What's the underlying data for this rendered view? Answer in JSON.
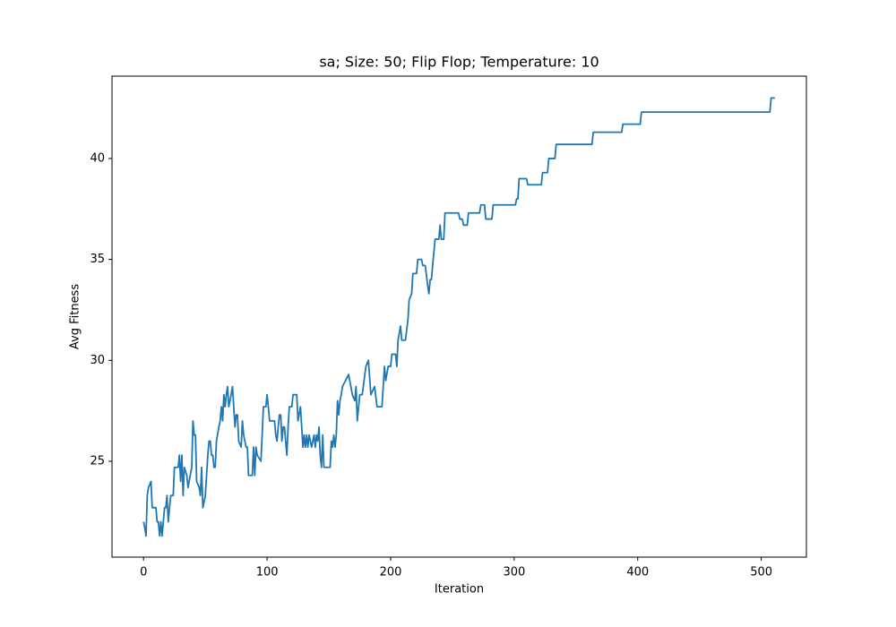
{
  "chart_data": {
    "type": "line",
    "title": "sa; Size: 50; Flip Flop; Temperature: 10",
    "x_label": "Iteration",
    "y_label": "Avg Fitness",
    "color": "#1f77b4",
    "grid": false,
    "xlim": [
      -25.55,
      536.55
    ],
    "ylim": [
      20.25,
      44.08
    ],
    "xticks": [
      0,
      100,
      200,
      300,
      400,
      500
    ],
    "yticks": [
      25,
      30,
      35,
      40
    ],
    "x": [
      0,
      1,
      2,
      3,
      4,
      6,
      7,
      10,
      11,
      12,
      13,
      14,
      15,
      17,
      18,
      19,
      20,
      21,
      22,
      24,
      25,
      28,
      29,
      30,
      31,
      32,
      33,
      35,
      36,
      39,
      40,
      41,
      42,
      43,
      45,
      46,
      47,
      48,
      50,
      52,
      53,
      54,
      55,
      56,
      57,
      58,
      59,
      61,
      62,
      63,
      64,
      65,
      66,
      67,
      68,
      69,
      70,
      72,
      73,
      74,
      75,
      76,
      77,
      79,
      80,
      81,
      83,
      84,
      85,
      88,
      89,
      90,
      91,
      92,
      95,
      96,
      97,
      99,
      100,
      101,
      102,
      106,
      107,
      108,
      109,
      110,
      111,
      112,
      113,
      114,
      116,
      117,
      118,
      120,
      121,
      124,
      125,
      127,
      128,
      129,
      130,
      131,
      132,
      133,
      134,
      136,
      138,
      139,
      140,
      141,
      142,
      143,
      144,
      145,
      146,
      151,
      152,
      153,
      154,
      155,
      156,
      157,
      158,
      159,
      160,
      161,
      166,
      169,
      171,
      172,
      173,
      175,
      177,
      180,
      182,
      184,
      187,
      189,
      193,
      195,
      196,
      198,
      200,
      201,
      204,
      205,
      206,
      208,
      209,
      212,
      214,
      215,
      217,
      218,
      221,
      222,
      225,
      226,
      228,
      230,
      231,
      232,
      233,
      234,
      236,
      239,
      240,
      241,
      243,
      244,
      255,
      256,
      258,
      259,
      262,
      263,
      272,
      273,
      276,
      277,
      282,
      283,
      301,
      302,
      303,
      304,
      310,
      311,
      322,
      323,
      327,
      328,
      333,
      334,
      363,
      364,
      387,
      388,
      402,
      403,
      507,
      508,
      511
    ],
    "values": [
      22,
      21.7,
      21.3,
      23.3,
      23.7,
      24,
      22.7,
      22.7,
      22,
      22,
      21.3,
      22,
      21.3,
      22.7,
      22.7,
      23.3,
      22,
      22.7,
      23.3,
      23.3,
      24.7,
      24.7,
      25.3,
      24,
      25.3,
      23.3,
      24.7,
      24.3,
      23.7,
      24.7,
      27,
      26.3,
      26.3,
      24,
      23.7,
      23.3,
      24.7,
      22.7,
      23.3,
      25.3,
      26,
      26,
      25.3,
      25.3,
      24.7,
      24.7,
      26,
      26.7,
      27,
      27.7,
      27,
      28.3,
      27.7,
      28.3,
      28.7,
      27.7,
      28,
      28.7,
      27.7,
      26.7,
      27.3,
      27.3,
      26,
      25.7,
      27,
      26.3,
      25.7,
      25.7,
      24.3,
      24.3,
      25.7,
      24.3,
      25.7,
      25.3,
      25,
      26.3,
      27.7,
      27.7,
      28.3,
      27.7,
      27,
      27,
      26.3,
      26,
      26.7,
      27.3,
      27.3,
      26,
      26.7,
      26.7,
      25.3,
      26.7,
      27.7,
      27.7,
      28.3,
      28.3,
      27,
      27.7,
      26.7,
      25.7,
      26.3,
      25.7,
      26.3,
      25.7,
      26.3,
      25.7,
      26.3,
      25.7,
      26.3,
      26,
      26.7,
      25.3,
      24.7,
      26.3,
      24.7,
      24.7,
      26,
      25.7,
      26.3,
      25.7,
      26.3,
      28,
      27.3,
      28,
      28.3,
      28.7,
      29.3,
      28.3,
      28,
      28.7,
      27,
      28.3,
      28.3,
      29.7,
      30,
      28.3,
      28.7,
      27.7,
      27.7,
      29.7,
      29,
      29.7,
      29.7,
      30.3,
      30.3,
      29.7,
      31,
      31.7,
      31,
      31,
      32,
      33,
      33.3,
      34.3,
      34.3,
      35,
      35,
      34.7,
      34.7,
      33.7,
      33.3,
      34,
      34,
      34.7,
      36,
      36,
      36.7,
      36,
      36,
      37.3,
      37.3,
      37,
      37,
      36.7,
      36.7,
      37.3,
      37.3,
      37.7,
      37.7,
      37,
      37,
      37.7,
      37.7,
      38,
      38,
      39,
      39,
      38.7,
      38.7,
      39.3,
      39.3,
      40,
      40,
      40.7,
      40.7,
      41.3,
      41.3,
      41.7,
      41.7,
      42.3,
      42.3,
      43,
      43
    ]
  }
}
